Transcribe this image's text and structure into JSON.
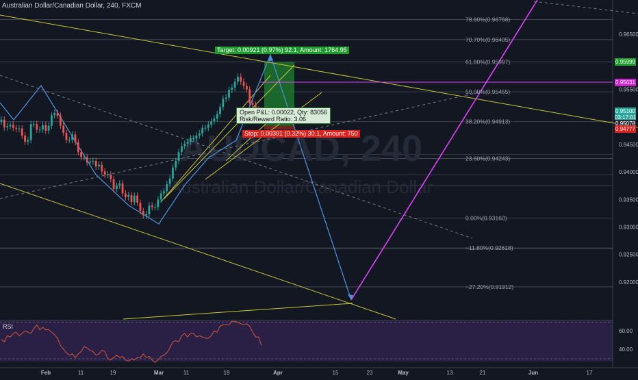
{
  "header": {
    "title": "Australian Dollar/Canadian Dollar, 240, FXCM"
  },
  "watermark": {
    "symbol": "AUDCAD, 240",
    "name": "Australian Dollar/Canadian Dollar"
  },
  "position": {
    "target_label": "Target: 0.00921 (0.97%) 92.1, Amount: 1764.95",
    "open_label": "Open P&L: 0.00022, Qty: 83056",
    "ratio_label": "Risk/Reward Ratio: 3.06",
    "stop_label": "Stop: 0.00301 (0.32%) 30.1, Amount: 750"
  },
  "colors": {
    "background": "#131722",
    "up": "#26a69a",
    "down": "#ef5350",
    "target": "#1e9d2e",
    "stop": "#e0201c",
    "magenta": "#e040fb",
    "yellow": "#c8c83a",
    "blue": "#4a8fd8"
  },
  "rsi_label": "RSI",
  "chart_data": [
    {
      "type": "candlestick",
      "title": "Australian Dollar/Canadian Dollar, 240, FXCM",
      "x_axis": {
        "tick_labels": [
          "Feb",
          "11",
          "19",
          "Mar",
          "11",
          "19",
          "Apr",
          "15",
          "23",
          "May",
          "13",
          "21",
          "Jun",
          "17"
        ]
      },
      "y_axis": {
        "ylim": [
          0.9165,
          0.969
        ],
        "tick_labels": [
          "0.96500",
          "0.95500",
          "0.94500",
          "0.94000",
          "0.93500",
          "0.93000",
          "0.92500",
          "0.92000"
        ]
      },
      "price_tags": [
        {
          "label": "0.95999",
          "value": 0.95999,
          "color": "#1e9d2e"
        },
        {
          "label": "0.95631",
          "value": 0.95631,
          "color": "#d020d0"
        },
        {
          "label": "0.95100",
          "value": 0.951,
          "color": "#26a69a"
        },
        {
          "label": "03:17:01",
          "value": 0.9499,
          "color": "#26a69a"
        },
        {
          "label": "0.95078",
          "value": 0.9488,
          "color": "#2a2e39"
        },
        {
          "label": "0.94777",
          "value": 0.94777,
          "color": "#e0201c"
        }
      ],
      "fib_levels": [
        {
          "ratio": "78.60%",
          "value": 0.96768,
          "label": "78.60%(0.96768)"
        },
        {
          "ratio": "70.70%",
          "value": 0.96405,
          "label": "70.70%(0.96405)"
        },
        {
          "ratio": "61.80%",
          "value": 0.95997,
          "label": "61.80%(0.95997)"
        },
        {
          "ratio": "50.00%",
          "value": 0.95455,
          "label": "50.00%(0.95455)"
        },
        {
          "ratio": "38.20%",
          "value": 0.94913,
          "label": "38.20%(0.94913)"
        },
        {
          "ratio": "23.60%",
          "value": 0.94243,
          "label": "23.60%(0.94243)"
        },
        {
          "ratio": "0.00%",
          "value": 0.9316,
          "label": "0.00%(0.93160)"
        },
        {
          "ratio": "-11.80%",
          "value": 0.92618,
          "label": "−11.80%(0.92618)"
        },
        {
          "ratio": "-27.20%",
          "value": 0.91912,
          "label": "−27.20%(0.91912)"
        }
      ],
      "series": [
        {
          "name": "Price",
          "close": [
            0.9495,
            0.9481,
            0.9483,
            0.9486,
            0.948,
            0.9478,
            0.9479,
            0.9466,
            0.9455,
            0.9458,
            0.9487,
            0.9487,
            0.9477,
            0.9477,
            0.9485,
            0.9475,
            0.9484,
            0.9503,
            0.9507,
            0.9502,
            0.9484,
            0.9471,
            0.9458,
            0.9458,
            0.9468,
            0.9454,
            0.9436,
            0.9427,
            0.9427,
            0.9417,
            0.9419,
            0.942,
            0.941,
            0.9413,
            0.9401,
            0.9395,
            0.9395,
            0.9387,
            0.9369,
            0.9375,
            0.9379,
            0.9361,
            0.9354,
            0.9358,
            0.9345,
            0.9357,
            0.9344,
            0.9329,
            0.9321,
            0.9323,
            0.9339,
            0.9336,
            0.9336,
            0.935,
            0.9361,
            0.9365,
            0.9378,
            0.9388,
            0.9408,
            0.942,
            0.9436,
            0.9447,
            0.9451,
            0.9455,
            0.9461,
            0.9461,
            0.9466,
            0.947,
            0.948,
            0.948,
            0.9486,
            0.9492,
            0.9497,
            0.9505,
            0.9518,
            0.9533,
            0.9535,
            0.9549,
            0.9553,
            0.9564,
            0.9573,
            0.9564,
            0.9556,
            0.955,
            0.9525,
            0.9522,
            0.9513,
            0.9509,
            0.951
          ],
          "rsi": [
            51,
            49,
            54,
            53,
            56,
            57,
            54,
            56,
            58,
            57,
            56,
            60,
            63,
            59,
            61,
            59,
            59,
            57,
            55,
            52,
            46,
            43,
            40,
            38,
            39,
            36,
            39,
            41,
            45,
            44,
            42,
            41,
            38,
            39,
            42,
            41,
            35,
            34,
            36,
            38,
            36,
            37,
            34,
            33,
            35,
            34,
            36,
            36,
            39,
            36,
            37,
            34,
            32,
            34,
            37,
            38,
            40,
            44,
            49,
            50,
            49,
            54,
            56,
            53,
            56,
            56,
            53,
            54,
            53,
            52,
            52,
            54,
            58,
            57,
            62,
            63,
            63,
            63,
            66,
            66,
            65,
            64,
            63,
            64,
            62,
            57,
            53,
            53,
            46
          ]
        }
      ],
      "drawn_path_points": [
        0.9545,
        0.9475,
        0.9595,
        0.9316,
        0.9475,
        0.9601,
        0.9191,
        0.9675
      ]
    },
    {
      "type": "line",
      "title": "RSI",
      "y_axis": {
        "tick_labels": [
          "60.00",
          "40.00"
        ]
      },
      "series": [
        {
          "name": "RSI",
          "source": "series.rsi"
        }
      ]
    }
  ]
}
